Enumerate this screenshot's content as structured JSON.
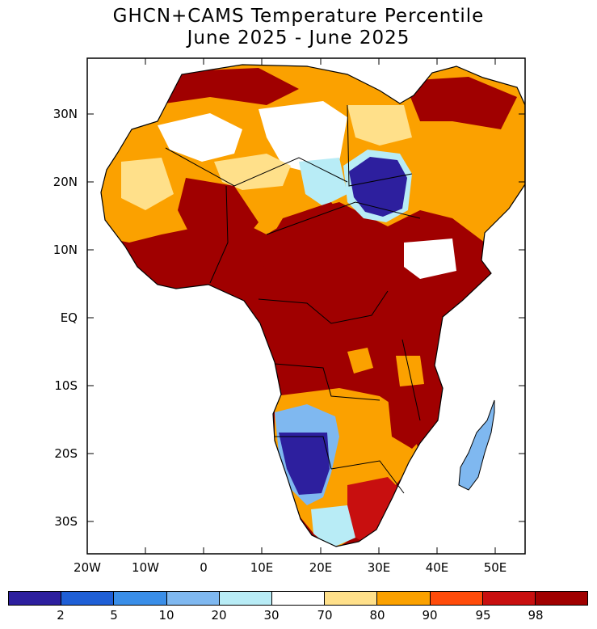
{
  "title": {
    "line1": "GHCN+CAMS Temperature Percentile",
    "line2": "June 2025 - June 2025"
  },
  "map": {
    "region": "Africa",
    "lat_labels": [
      "30N",
      "20N",
      "10N",
      "EQ",
      "10S",
      "20S",
      "30S"
    ],
    "lon_labels": [
      "20W",
      "10W",
      "0",
      "10E",
      "20E",
      "30E",
      "40E",
      "50E"
    ]
  },
  "colorbar": {
    "colors": [
      "#2d1f9e",
      "#1f5fd6",
      "#3a8ee8",
      "#7fb8f0",
      "#b8ecf6",
      "#ffffff",
      "#ffe08a",
      "#fba100",
      "#ff4b0a",
      "#c80f0f",
      "#a00000"
    ],
    "labels": [
      "2",
      "5",
      "10",
      "20",
      "30",
      "70",
      "80",
      "90",
      "95",
      "98"
    ]
  }
}
